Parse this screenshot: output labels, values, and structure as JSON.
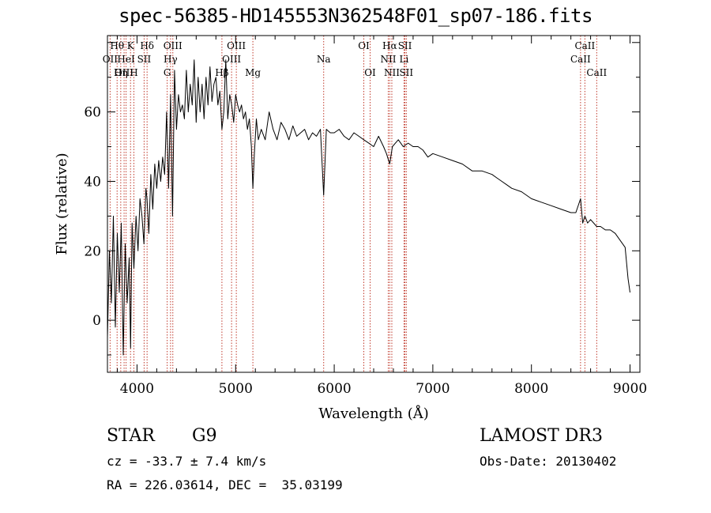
{
  "title": "spec-56385-HD145553N362548F01_sp07-186.fits",
  "info": {
    "class_label": "STAR",
    "subclass": "G9",
    "survey": "LAMOST DR3",
    "cz": "cz = -33.7 ± 7.4 km/s",
    "obs_date": "Obs-Date: 20130402",
    "coords": "RA = 226.03614, DEC =  35.03199"
  },
  "chart_data": {
    "type": "line",
    "title": "spec-56385-HD145553N362548F01_sp07-186.fits",
    "xlabel": "Wavelength (Å)",
    "ylabel": "Flux (relative)",
    "xlim": [
      3700,
      9100
    ],
    "ylim": [
      -15,
      82
    ],
    "x_ticks": [
      4000,
      5000,
      6000,
      7000,
      8000,
      9000
    ],
    "y_ticks": [
      0,
      20,
      40,
      60
    ],
    "grid": false,
    "colors": {
      "spectrum": "#000000",
      "lines": "#c0392b",
      "axes": "#000000"
    },
    "series": [
      {
        "x": [
          3700,
          3720,
          3740,
          3760,
          3780,
          3800,
          3820,
          3840,
          3860,
          3880,
          3900,
          3920,
          3935,
          3950,
          3968,
          3990,
          4010,
          4030,
          4050,
          4070,
          4090,
          4101,
          4120,
          4140,
          4160,
          4180,
          4200,
          4220,
          4240,
          4260,
          4280,
          4300,
          4320,
          4340,
          4360,
          4380,
          4400,
          4420,
          4440,
          4460,
          4480,
          4500,
          4520,
          4540,
          4560,
          4580,
          4600,
          4620,
          4640,
          4660,
          4680,
          4700,
          4720,
          4740,
          4760,
          4780,
          4800,
          4820,
          4840,
          4861,
          4880,
          4900,
          4920,
          4940,
          4960,
          4980,
          5000,
          5020,
          5040,
          5060,
          5080,
          5100,
          5120,
          5140,
          5160,
          5175,
          5190,
          5210,
          5230,
          5260,
          5300,
          5340,
          5380,
          5420,
          5460,
          5500,
          5540,
          5580,
          5620,
          5660,
          5700,
          5740,
          5780,
          5820,
          5860,
          5893,
          5920,
          5960,
          6000,
          6050,
          6100,
          6150,
          6200,
          6250,
          6300,
          6350,
          6400,
          6450,
          6500,
          6530,
          6563,
          6590,
          6620,
          6650,
          6700,
          6750,
          6800,
          6850,
          6900,
          6950,
          7000,
          7100,
          7200,
          7300,
          7400,
          7500,
          7600,
          7650,
          7700,
          7750,
          7800,
          7900,
          8000,
          8100,
          8200,
          8300,
          8400,
          8450,
          8498,
          8520,
          8542,
          8570,
          8600,
          8662,
          8700,
          8750,
          8800,
          8850,
          8900,
          8950,
          8980,
          9000
        ],
        "y": [
          -5,
          20,
          5,
          30,
          -2,
          25,
          8,
          28,
          -10,
          22,
          5,
          18,
          -8,
          28,
          15,
          30,
          20,
          35,
          30,
          22,
          38,
          35,
          25,
          42,
          32,
          45,
          38,
          46,
          40,
          47,
          42,
          60,
          38,
          65,
          30,
          72,
          55,
          65,
          60,
          62,
          58,
          72,
          60,
          68,
          62,
          75,
          57,
          70,
          60,
          68,
          58,
          70,
          62,
          73,
          63,
          68,
          70,
          62,
          66,
          55,
          60,
          75,
          58,
          65,
          62,
          57,
          65,
          62,
          60,
          62,
          58,
          60,
          55,
          58,
          50,
          38,
          48,
          58,
          52,
          55,
          52,
          60,
          55,
          52,
          57,
          55,
          52,
          56,
          53,
          54,
          55,
          52,
          54,
          53,
          55,
          36,
          55,
          54,
          54,
          55,
          53,
          52,
          54,
          53,
          52,
          51,
          50,
          53,
          50,
          48,
          45,
          50,
          51,
          52,
          50,
          51,
          50,
          50,
          49,
          47,
          48,
          47,
          46,
          45,
          43,
          43,
          42,
          41,
          40,
          39,
          38,
          37,
          35,
          34,
          33,
          32,
          31,
          31,
          35,
          28,
          30,
          28,
          29,
          27,
          27,
          26,
          26,
          25,
          23,
          21,
          12,
          8
        ]
      }
    ],
    "spectral_lines": [
      {
        "label": "Hθ",
        "wavelength": 3798,
        "row": 1
      },
      {
        "label": "OII",
        "wavelength": 3727,
        "row": 2
      },
      {
        "label": "OIII",
        "wavelength": 3869,
        "row": 3
      },
      {
        "label": "K",
        "wavelength": 3934,
        "row": 1
      },
      {
        "label": "HeI",
        "wavelength": 3889,
        "row": 2
      },
      {
        "label": "Hη",
        "wavelength": 3835,
        "row": 3
      },
      {
        "label": "Hδ",
        "wavelength": 4102,
        "row": 1
      },
      {
        "label": "SII",
        "wavelength": 4072,
        "row": 2
      },
      {
        "label": "H",
        "wavelength": 3968,
        "row": 3
      },
      {
        "label": "OIII",
        "wavelength": 4363,
        "row": 1
      },
      {
        "label": "Hγ",
        "wavelength": 4340,
        "row": 2
      },
      {
        "label": "G",
        "wavelength": 4306,
        "row": 3
      },
      {
        "label": "OIII",
        "wavelength": 5007,
        "row": 1
      },
      {
        "label": "OIII",
        "wavelength": 4959,
        "row": 2
      },
      {
        "label": "Hβ",
        "wavelength": 4861,
        "row": 3
      },
      {
        "label": "Mg",
        "wavelength": 5175,
        "row": 3
      },
      {
        "label": "Na",
        "wavelength": 5893,
        "row": 2
      },
      {
        "label": "OI",
        "wavelength": 6300,
        "row": 1
      },
      {
        "label": "OI",
        "wavelength": 6364,
        "row": 3
      },
      {
        "label": "Hα",
        "wavelength": 6563,
        "row": 1
      },
      {
        "label": "NII",
        "wavelength": 6548,
        "row": 2
      },
      {
        "label": "NII",
        "wavelength": 6584,
        "row": 3
      },
      {
        "label": "SII",
        "wavelength": 6717,
        "row": 1
      },
      {
        "label": "Li",
        "wavelength": 6708,
        "row": 2
      },
      {
        "label": "SII",
        "wavelength": 6731,
        "row": 3
      },
      {
        "label": "CaII",
        "wavelength": 8542,
        "row": 1
      },
      {
        "label": "CaII",
        "wavelength": 8498,
        "row": 2
      },
      {
        "label": "CaII",
        "wavelength": 8662,
        "row": 3
      }
    ]
  }
}
